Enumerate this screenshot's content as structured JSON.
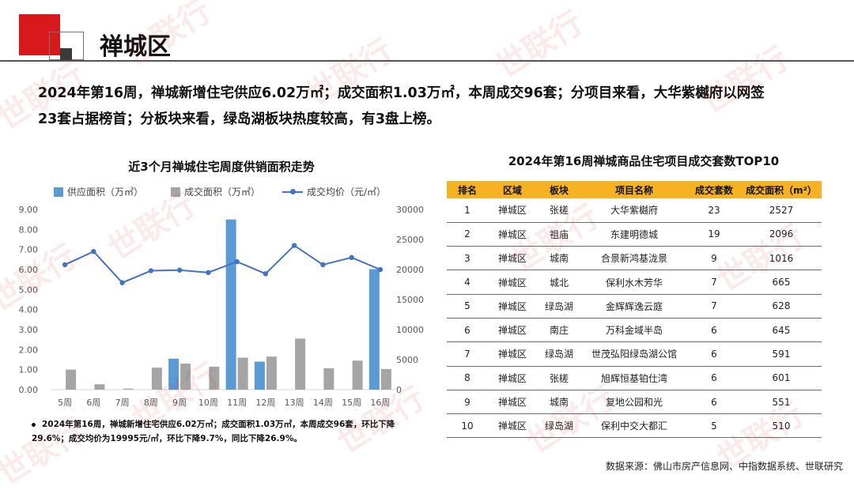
{
  "header": {
    "title": "禅城区"
  },
  "summary": {
    "line1": "2024年第16周，禅城新增住宅供应6.02万㎡；成交面积1.03万㎡，本周成交96套；分项目来看，大华紫樾府以网签",
    "line2": "23套占据榜首；分板块来看，绿岛湖板块热度较高，有3盘上榜。"
  },
  "left_chart": {
    "title": "近3个月禅城住宅周度供销面积走势"
  },
  "chart_data": {
    "type": "bar",
    "title": "近3个月禅城住宅周度供销面积走势",
    "categories": [
      "5周",
      "6周",
      "7周",
      "8周",
      "9周",
      "10周",
      "11周",
      "12周",
      "13周",
      "14周",
      "15周",
      "16周"
    ],
    "series": [
      {
        "name": "供应面积（万㎡）",
        "type": "bar",
        "axis": "left",
        "values": [
          0,
          0,
          0,
          0,
          1.55,
          0,
          8.5,
          1.4,
          0,
          0,
          0,
          6.02
        ]
      },
      {
        "name": "成交面积（万㎡）",
        "type": "bar",
        "axis": "left",
        "values": [
          1.0,
          0.27,
          0.05,
          1.1,
          1.3,
          1.15,
          1.6,
          1.65,
          2.55,
          1.07,
          1.45,
          1.03
        ]
      },
      {
        "name": "成交均价（元/㎡）",
        "type": "line",
        "axis": "right",
        "values": [
          20800,
          23000,
          17800,
          19800,
          19900,
          19500,
          21300,
          19300,
          24000,
          20800,
          22000,
          19995
        ]
      }
    ],
    "ylim_left": [
      0,
      9
    ],
    "yticks_left": [
      "0.00",
      "1.00",
      "2.00",
      "3.00",
      "4.00",
      "5.00",
      "6.00",
      "7.00",
      "8.00",
      "9.00"
    ],
    "ylim_right": [
      0,
      30000
    ],
    "yticks_right": [
      "0",
      "5000",
      "10000",
      "15000",
      "20000",
      "25000",
      "30000"
    ],
    "legend_position": "top",
    "grid": false,
    "colors": {
      "supply": "#5b9bd5",
      "deal": "#a5a5a5",
      "price": "#4472c4"
    }
  },
  "chart_note": {
    "line1": "2024年第16周，禅城新增住宅供应6.02万㎡；成交面积1.03万㎡，本周成交96套，环比下降",
    "line2": "29.6%；成交均价为19995元/㎡，环比下降9.7%，同比下降26.9%。"
  },
  "ranking": {
    "title": "2024年第16周禅城商品住宅项目成交套数TOP10",
    "headers": [
      "排名",
      "区域",
      "板块",
      "项目名称",
      "成交套数",
      "成交面积（m²）"
    ],
    "rows": [
      [
        "1",
        "禅城区",
        "张槎",
        "大华紫樾府",
        "23",
        "2527"
      ],
      [
        "2",
        "禅城区",
        "祖庙",
        "东建明德城",
        "19",
        "2096"
      ],
      [
        "3",
        "禅城区",
        "城南",
        "合景新鸿基泷景",
        "9",
        "1016"
      ],
      [
        "4",
        "禅城区",
        "城北",
        "保利水木芳华",
        "7",
        "665"
      ],
      [
        "5",
        "禅城区",
        "绿岛湖",
        "金辉辉逸云庭",
        "7",
        "628"
      ],
      [
        "6",
        "禅城区",
        "南庄",
        "万科金域半岛",
        "6",
        "645"
      ],
      [
        "7",
        "禅城区",
        "绿岛湖",
        "世茂弘阳绿岛湖公馆",
        "6",
        "591"
      ],
      [
        "8",
        "禅城区",
        "张槎",
        "旭辉恒基铂仕湾",
        "6",
        "601"
      ],
      [
        "9",
        "禅城区",
        "城南",
        "复地公园和光",
        "6",
        "551"
      ],
      [
        "10",
        "禅城区",
        "绿岛湖",
        "保利中交大都汇",
        "5",
        "510"
      ]
    ],
    "header_color": "#f6b221"
  },
  "source": "数据来源：佛山市房产信息网、中指数据系统、世联研究",
  "watermark": "世联行"
}
